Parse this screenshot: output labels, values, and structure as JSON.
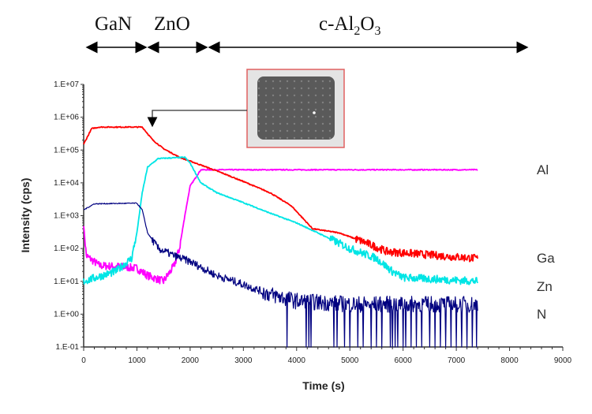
{
  "regions": [
    {
      "label": "GaN",
      "from": 0,
      "to": 1000
    },
    {
      "label": "ZnO",
      "from": 1000,
      "to": 2000
    },
    {
      "label": "c-Al",
      "sub1": "2",
      "mid": "O",
      "sub2": "3",
      "from": 2000,
      "to": 7500
    }
  ],
  "chart_data": {
    "type": "line",
    "xlabel": "Time (s)",
    "ylabel": "Intensity (cps)",
    "xlim": [
      0,
      9000
    ],
    "xticks": [
      0,
      1000,
      2000,
      3000,
      4000,
      5000,
      6000,
      7000,
      8000,
      9000
    ],
    "ylim": [
      0.1,
      10000000
    ],
    "yscale": "log",
    "yticks": [
      "1.E-01",
      "1.E+00",
      "1.E+01",
      "1.E+02",
      "1.E+03",
      "1.E+04",
      "1.E+05",
      "1.E+06",
      "1.E+07"
    ],
    "grid": false,
    "inset_annotation": {
      "points_to_x": 1100,
      "points_to_y": 500000
    },
    "series": [
      {
        "name": "Al",
        "color": "#ff00ff",
        "points": [
          [
            0,
            500
          ],
          [
            50,
            60
          ],
          [
            300,
            30
          ],
          [
            700,
            28
          ],
          [
            1000,
            25
          ],
          [
            1200,
            15
          ],
          [
            1500,
            10
          ],
          [
            1700,
            30
          ],
          [
            1800,
            100
          ],
          [
            1900,
            1000
          ],
          [
            2000,
            8000
          ],
          [
            2200,
            25000
          ],
          [
            7400,
            25000
          ]
        ]
      },
      {
        "name": "Ga",
        "color": "#ff0000",
        "points": [
          [
            0,
            150000
          ],
          [
            150,
            450000
          ],
          [
            300,
            500000
          ],
          [
            1100,
            500000
          ],
          [
            1300,
            200000
          ],
          [
            1500,
            110000
          ],
          [
            1800,
            60000
          ],
          [
            2200,
            35000
          ],
          [
            2600,
            20000
          ],
          [
            3000,
            11000
          ],
          [
            3500,
            5000
          ],
          [
            3900,
            2000
          ],
          [
            4300,
            400
          ],
          [
            4800,
            300
          ],
          [
            5300,
            150
          ],
          [
            5700,
            80
          ],
          [
            6200,
            70
          ],
          [
            7000,
            55
          ],
          [
            7400,
            50
          ]
        ]
      },
      {
        "name": "Zn",
        "color": "#00e5e5",
        "points": [
          [
            0,
            10
          ],
          [
            600,
            20
          ],
          [
            900,
            50
          ],
          [
            1000,
            300
          ],
          [
            1100,
            5000
          ],
          [
            1200,
            30000
          ],
          [
            1400,
            55000
          ],
          [
            1900,
            60000
          ],
          [
            2000,
            40000
          ],
          [
            2200,
            10000
          ],
          [
            2500,
            5000
          ],
          [
            3000,
            2500
          ],
          [
            3500,
            1200
          ],
          [
            4000,
            600
          ],
          [
            4500,
            250
          ],
          [
            5000,
            100
          ],
          [
            5500,
            50
          ],
          [
            5800,
            20
          ],
          [
            6000,
            13
          ],
          [
            7400,
            10
          ]
        ]
      },
      {
        "name": "N",
        "color": "#000080",
        "points": [
          [
            0,
            1500
          ],
          [
            200,
            2300
          ],
          [
            1000,
            2400
          ],
          [
            1100,
            1500
          ],
          [
            1200,
            300
          ],
          [
            1400,
            100
          ],
          [
            1700,
            60
          ],
          [
            2000,
            40
          ],
          [
            2500,
            15
          ],
          [
            3000,
            8
          ],
          [
            3500,
            4
          ],
          [
            4000,
            2.5
          ],
          [
            5000,
            2
          ],
          [
            7400,
            2
          ]
        ],
        "floor_dips_x": [
          3820,
          4180,
          4230,
          4270,
          4700,
          4760,
          4900,
          5000,
          5150,
          5250,
          5400,
          5500,
          5600,
          5760,
          5800,
          5850,
          5900,
          6000,
          6050,
          6150,
          6250,
          6350,
          6500,
          6600,
          6700,
          6800,
          6900,
          7000,
          7100,
          7200,
          7300,
          7380
        ]
      }
    ]
  }
}
